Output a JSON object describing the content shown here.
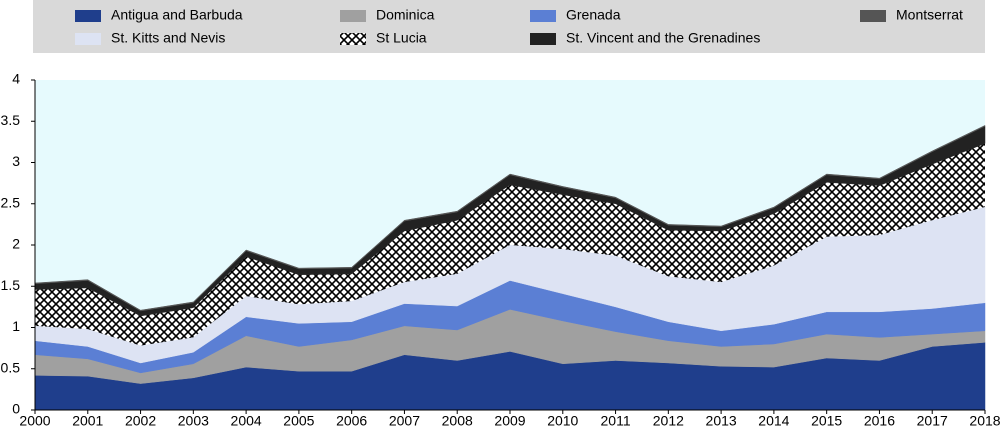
{
  "chart_data": {
    "type": "stacked-area",
    "x": [
      2000,
      2001,
      2002,
      2003,
      2004,
      2005,
      2006,
      2007,
      2008,
      2009,
      2010,
      2011,
      2012,
      2013,
      2014,
      2015,
      2016,
      2017,
      2018
    ],
    "xlim": [
      2000,
      2018
    ],
    "xticks": [
      2000,
      2001,
      2002,
      2003,
      2004,
      2005,
      2006,
      2007,
      2008,
      2009,
      2010,
      2011,
      2012,
      2013,
      2014,
      2015,
      2016,
      2017,
      2018
    ],
    "ylim": [
      0,
      4
    ],
    "yticks": [
      0,
      0.5,
      1,
      1.5,
      2,
      2.5,
      3,
      3.5,
      4
    ],
    "series": [
      {
        "name": "Antigua and Barbuda",
        "color": "#1f3e8c",
        "values": [
          0.42,
          0.41,
          0.32,
          0.39,
          0.52,
          0.47,
          0.47,
          0.67,
          0.6,
          0.71,
          0.56,
          0.6,
          0.57,
          0.53,
          0.52,
          0.63,
          0.6,
          0.77,
          0.82
        ]
      },
      {
        "name": "Dominica",
        "color": "#a0a0a0",
        "values": [
          0.25,
          0.21,
          0.13,
          0.17,
          0.38,
          0.3,
          0.38,
          0.35,
          0.37,
          0.51,
          0.52,
          0.35,
          0.27,
          0.24,
          0.28,
          0.29,
          0.28,
          0.15,
          0.14
        ]
      },
      {
        "name": "Grenada",
        "color": "#5b7fd4",
        "values": [
          0.17,
          0.15,
          0.12,
          0.14,
          0.23,
          0.28,
          0.22,
          0.27,
          0.29,
          0.35,
          0.33,
          0.3,
          0.23,
          0.19,
          0.24,
          0.27,
          0.31,
          0.31,
          0.34
        ]
      },
      {
        "name": "St. Kitts and Nevis",
        "color": "#dde3f3",
        "values": [
          0.18,
          0.21,
          0.21,
          0.18,
          0.25,
          0.23,
          0.25,
          0.26,
          0.39,
          0.43,
          0.54,
          0.62,
          0.55,
          0.59,
          0.71,
          0.91,
          0.93,
          1.07,
          1.16
        ]
      },
      {
        "name": "St Lucia",
        "color": "#000000",
        "pattern": "crosshatch",
        "values": [
          0.44,
          0.5,
          0.36,
          0.36,
          0.48,
          0.36,
          0.33,
          0.62,
          0.65,
          0.73,
          0.66,
          0.63,
          0.56,
          0.62,
          0.63,
          0.66,
          0.6,
          0.68,
          0.77
        ]
      },
      {
        "name": "St. Vincent and the Grenadines",
        "color": "#222222",
        "values": [
          0.07,
          0.09,
          0.06,
          0.06,
          0.07,
          0.07,
          0.07,
          0.12,
          0.1,
          0.12,
          0.09,
          0.07,
          0.06,
          0.05,
          0.07,
          0.09,
          0.08,
          0.15,
          0.21
        ]
      },
      {
        "name": "Montserrat",
        "color": "#555555",
        "values": [
          0.01,
          0.01,
          0.01,
          0.01,
          0.01,
          0.01,
          0.01,
          0.01,
          0.01,
          0.01,
          0.01,
          0.01,
          0.01,
          0.01,
          0.01,
          0.01,
          0.01,
          0.01,
          0.01
        ]
      }
    ]
  }
}
